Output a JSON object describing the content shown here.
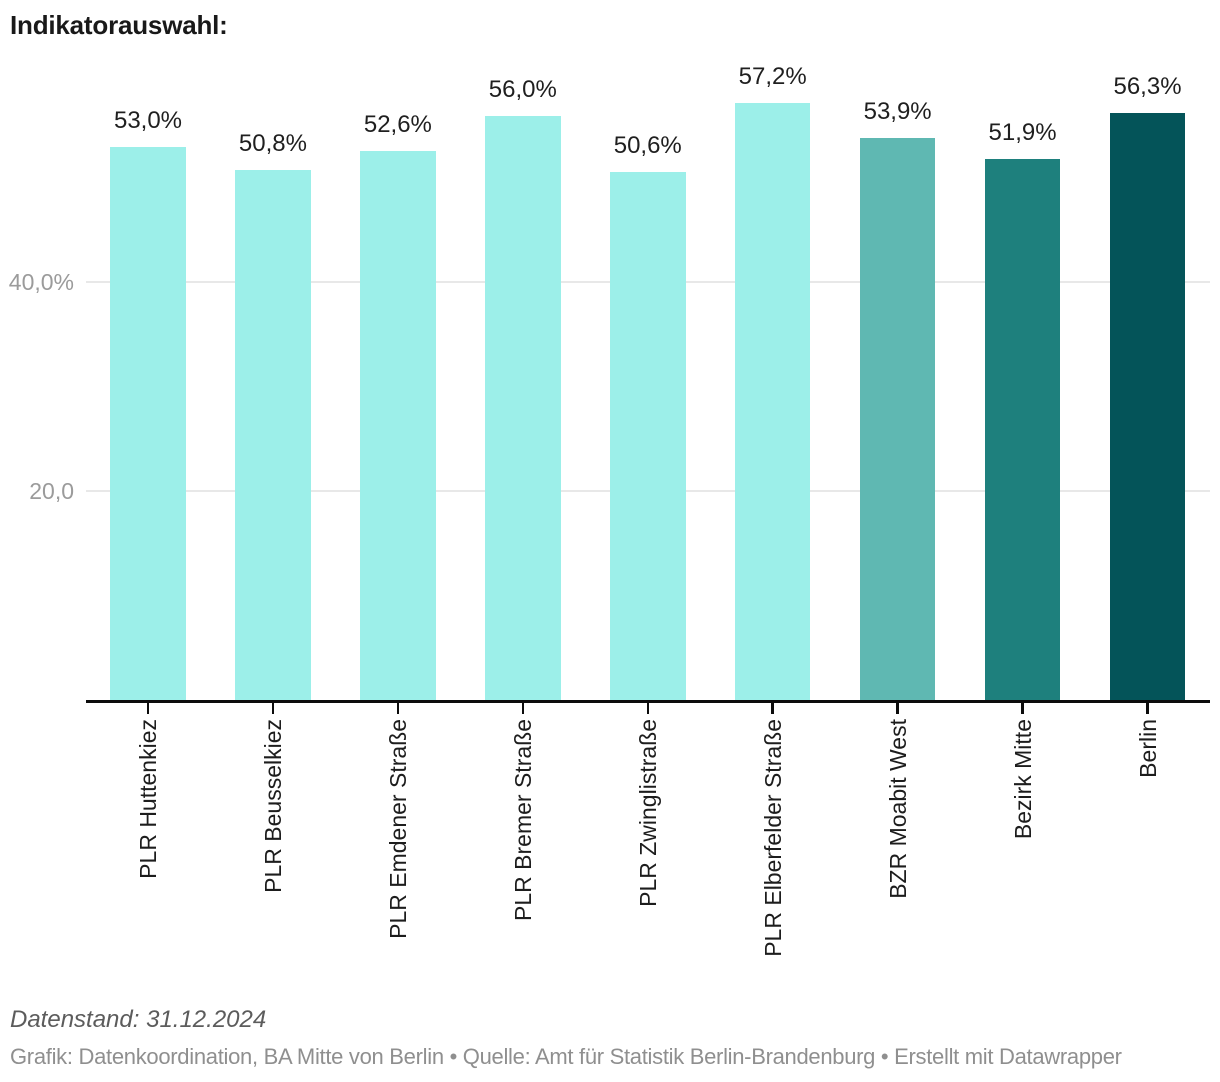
{
  "title": "Indikatorauswahl:",
  "chart_data": {
    "type": "bar",
    "title": "Indikatorauswahl:",
    "xlabel": "",
    "ylabel": "",
    "categories": [
      "PLR Huttenkiez",
      "PLR Beusselkiez",
      "PLR Emdener Straße",
      "PLR Bremer Straße",
      "PLR Zwinglistraße",
      "PLR Elberfelder Straße",
      "BZR Moabit West",
      "Bezirk Mitte",
      "Berlin"
    ],
    "values": [
      53.0,
      50.8,
      52.6,
      56.0,
      50.6,
      57.2,
      53.9,
      51.9,
      56.3
    ],
    "value_labels": [
      "53,0%",
      "50,8%",
      "52,6%",
      "56,0%",
      "50,6%",
      "57,2%",
      "53,9%",
      "51,9%",
      "56,3%"
    ],
    "bar_colors": [
      "#9CEFE9",
      "#9CEFE9",
      "#9CEFE9",
      "#9CEFE9",
      "#9CEFE9",
      "#9CEFE9",
      "#5FB8B2",
      "#1E807D",
      "#045459"
    ],
    "y_ticks": [
      {
        "value": 40,
        "label": "40,0%"
      },
      {
        "value": 20,
        "label": "20,0"
      }
    ],
    "ylim": [
      0,
      60
    ],
    "grid": "horizontal",
    "legend_position": "none"
  },
  "footer": {
    "note": "Datenstand: 31.12.2024",
    "credits": "Grafik: Datenkoordination, BA Mitte von Berlin • Quelle: Amt für Statistik Berlin-Brandenburg • Erstellt mit Datawrapper"
  },
  "colors": {
    "bar_plr": "#9CEFE9",
    "bar_bzr_moabit_west": "#5FB8B2",
    "bar_bezirk_mitte": "#1E807D",
    "bar_berlin": "#045459",
    "gridline": "#E8E8E8",
    "axis_line": "#0C0C0C",
    "y_tick_text": "#9B9B9B",
    "x_tick_text": "#1D1D1D",
    "value_label_text": "#1F1F1F"
  }
}
